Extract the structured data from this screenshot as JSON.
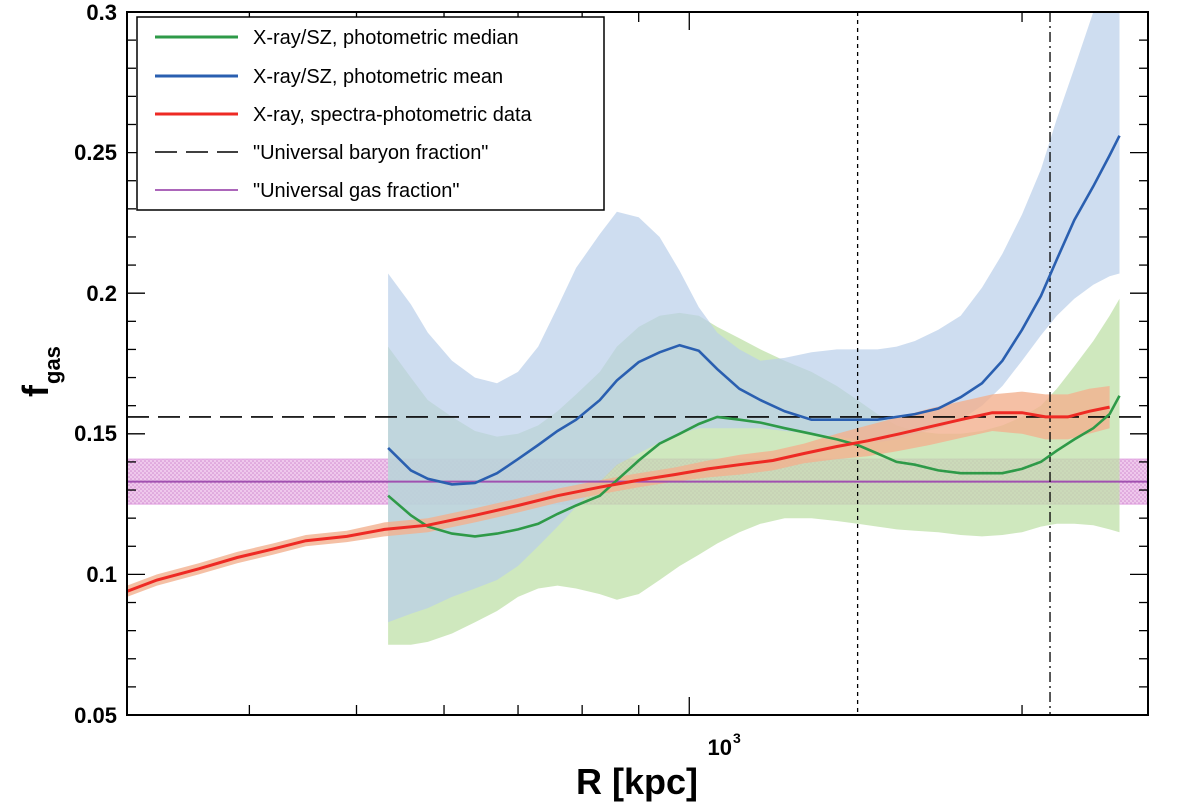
{
  "chart_data": {
    "type": "line",
    "xscale": "log",
    "xlim": [
      310,
      2600
    ],
    "ylim": [
      0.05,
      0.3
    ],
    "xlabel": "R [kpc]",
    "ylabel_main": "f",
    "ylabel_sub": "gas",
    "x_ticks": [
      {
        "value": 1000,
        "base": "10",
        "exp": "3"
      }
    ],
    "y_ticks": [
      {
        "value": 0.05,
        "label": "0.05"
      },
      {
        "value": 0.1,
        "label": "0.1"
      },
      {
        "value": 0.15,
        "label": "0.15"
      },
      {
        "value": 0.2,
        "label": "0.2"
      },
      {
        "value": 0.25,
        "label": "0.25"
      },
      {
        "value": 0.3,
        "label": "0.3"
      }
    ],
    "legend": [
      {
        "label": "X-ray/SZ, photometric median",
        "color": "#2e9a48",
        "style": "solid"
      },
      {
        "label": "X-ray/SZ, photometric mean",
        "color": "#2a5fb0",
        "style": "solid"
      },
      {
        "label": "X-ray, spectra-photometric data",
        "color": "#ee2a24",
        "style": "solid"
      },
      {
        "label": "\"Universal baryon fraction\"",
        "color": "#000000",
        "style": "dashed"
      },
      {
        "label": "\"Universal gas fraction\"",
        "color": "#a050b0",
        "style": "solid"
      }
    ],
    "reference_lines": {
      "baryon_fraction": 0.156,
      "gas_fraction": 0.133,
      "gas_fraction_band": [
        0.125,
        0.141
      ],
      "vline_dotted_x": 1420,
      "vline_dashdot_x": 2120
    },
    "series": [
      {
        "name": "X-ray/SZ, photometric median",
        "color": "#2e9a48",
        "band_color": "#bfe0a8",
        "x": [
          534,
          560,
          580,
          610,
          640,
          670,
          700,
          730,
          760,
          790,
          830,
          860,
          900,
          940,
          980,
          1020,
          1060,
          1110,
          1160,
          1220,
          1290,
          1360,
          1420,
          1480,
          1540,
          1600,
          1680,
          1760,
          1840,
          1920,
          2000,
          2080,
          2150,
          2230,
          2320,
          2400,
          2450
        ],
        "y": [
          0.128,
          0.121,
          0.117,
          0.1145,
          0.1135,
          0.1145,
          0.116,
          0.118,
          0.1215,
          0.1245,
          0.128,
          0.1335,
          0.1405,
          0.1465,
          0.15,
          0.1535,
          0.156,
          0.155,
          0.154,
          0.152,
          0.15,
          0.148,
          0.146,
          0.143,
          0.14,
          0.139,
          0.137,
          0.136,
          0.136,
          0.136,
          0.1375,
          0.14,
          0.144,
          0.148,
          0.152,
          0.157,
          0.1635
        ],
        "upper": [
          0.181,
          0.17,
          0.162,
          0.156,
          0.151,
          0.149,
          0.15,
          0.153,
          0.158,
          0.164,
          0.172,
          0.181,
          0.188,
          0.192,
          0.193,
          0.192,
          0.188,
          0.184,
          0.18,
          0.176,
          0.172,
          0.167,
          0.162,
          0.157,
          0.153,
          0.151,
          0.15,
          0.15,
          0.151,
          0.153,
          0.156,
          0.16,
          0.166,
          0.174,
          0.183,
          0.192,
          0.198
        ],
        "lower": [
          0.075,
          0.075,
          0.076,
          0.079,
          0.083,
          0.087,
          0.092,
          0.095,
          0.096,
          0.095,
          0.093,
          0.091,
          0.093,
          0.098,
          0.103,
          0.107,
          0.111,
          0.115,
          0.118,
          0.12,
          0.12,
          0.119,
          0.118,
          0.117,
          0.116,
          0.1155,
          0.115,
          0.114,
          0.1135,
          0.114,
          0.115,
          0.117,
          0.118,
          0.118,
          0.1175,
          0.116,
          0.115
        ]
      },
      {
        "name": "X-ray/SZ, photometric mean",
        "color": "#2a5fb0",
        "band_color": "#b9cfe9",
        "x": [
          534,
          560,
          580,
          610,
          640,
          670,
          700,
          730,
          760,
          790,
          830,
          860,
          900,
          940,
          980,
          1020,
          1060,
          1110,
          1160,
          1220,
          1290,
          1360,
          1420,
          1480,
          1540,
          1600,
          1680,
          1760,
          1840,
          1920,
          2000,
          2080,
          2150,
          2230,
          2320,
          2400,
          2450
        ],
        "y": [
          0.145,
          0.137,
          0.134,
          0.132,
          0.1325,
          0.136,
          0.141,
          0.146,
          0.151,
          0.155,
          0.162,
          0.169,
          0.1755,
          0.179,
          0.1815,
          0.1795,
          0.173,
          0.166,
          0.162,
          0.158,
          0.155,
          0.155,
          0.155,
          0.155,
          0.156,
          0.157,
          0.159,
          0.163,
          0.168,
          0.176,
          0.187,
          0.199,
          0.212,
          0.226,
          0.238,
          0.249,
          0.256
        ],
        "upper": [
          0.207,
          0.196,
          0.186,
          0.176,
          0.17,
          0.168,
          0.172,
          0.181,
          0.195,
          0.209,
          0.221,
          0.229,
          0.227,
          0.22,
          0.208,
          0.195,
          0.186,
          0.18,
          0.176,
          0.177,
          0.179,
          0.18,
          0.18,
          0.18,
          0.181,
          0.183,
          0.187,
          0.192,
          0.202,
          0.214,
          0.228,
          0.244,
          0.262,
          0.28,
          0.3,
          0.3,
          0.3
        ],
        "lower": [
          0.083,
          0.086,
          0.088,
          0.092,
          0.095,
          0.098,
          0.103,
          0.11,
          0.117,
          0.124,
          0.133,
          0.139,
          0.143,
          0.147,
          0.15,
          0.152,
          0.152,
          0.152,
          0.152,
          0.151,
          0.15,
          0.149,
          0.148,
          0.147,
          0.148,
          0.15,
          0.152,
          0.155,
          0.16,
          0.167,
          0.176,
          0.185,
          0.192,
          0.198,
          0.203,
          0.206,
          0.207
        ]
      },
      {
        "name": "X-ray, spectra-photometric data",
        "color": "#ee2a24",
        "band_color": "#f3b08e",
        "x": [
          310,
          330,
          360,
          390,
          420,
          450,
          490,
          530,
          580,
          640,
          700,
          760,
          830,
          900,
          970,
          1040,
          1110,
          1190,
          1270,
          1360,
          1450,
          1550,
          1650,
          1760,
          1880,
          2000,
          2100,
          2200,
          2300,
          2400
        ],
        "y": [
          0.094,
          0.098,
          0.102,
          0.106,
          0.109,
          0.112,
          0.1135,
          0.116,
          0.1175,
          0.121,
          0.1245,
          0.128,
          0.131,
          0.1335,
          0.1355,
          0.1375,
          0.139,
          0.1405,
          0.143,
          0.1455,
          0.1475,
          0.15,
          0.1525,
          0.155,
          0.1575,
          0.1575,
          0.156,
          0.156,
          0.158,
          0.1595
        ],
        "upper": [
          0.096,
          0.1,
          0.104,
          0.108,
          0.111,
          0.114,
          0.1155,
          0.1185,
          0.12,
          0.1235,
          0.127,
          0.1305,
          0.1335,
          0.136,
          0.138,
          0.1405,
          0.1425,
          0.144,
          0.1465,
          0.15,
          0.153,
          0.156,
          0.159,
          0.1615,
          0.164,
          0.165,
          0.164,
          0.164,
          0.166,
          0.167
        ],
        "lower": [
          0.092,
          0.096,
          0.1,
          0.104,
          0.107,
          0.11,
          0.1115,
          0.1135,
          0.115,
          0.1185,
          0.122,
          0.1255,
          0.1285,
          0.131,
          0.133,
          0.1345,
          0.1355,
          0.137,
          0.1395,
          0.141,
          0.142,
          0.144,
          0.146,
          0.1485,
          0.151,
          0.15,
          0.148,
          0.148,
          0.15,
          0.152
        ]
      }
    ]
  }
}
